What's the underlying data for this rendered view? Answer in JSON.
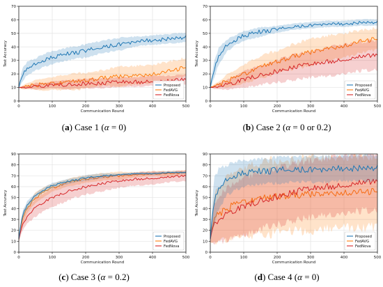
{
  "legend_colors": {
    "Proposed": "#1f77b4",
    "FedAVG": "#ff7f0e",
    "FedNova": "#d62728"
  },
  "captions": [
    {
      "letter": "a",
      "pre": "Case 1 (",
      "alpha": "α",
      "post": " = 0)"
    },
    {
      "letter": "b",
      "pre": "Case 2 (",
      "alpha": "α",
      "post": " = 0 or 0.2)"
    },
    {
      "letter": "c",
      "pre": "Case 3 (",
      "alpha": "α",
      "post": " = 0.2)"
    },
    {
      "letter": "d",
      "pre": "Case 4 (",
      "alpha": "α",
      "post": " = 0)"
    }
  ],
  "chart_data": [
    {
      "type": "line",
      "xlabel": "Communication Round",
      "ylabel": "Test Accuracy",
      "xlim": [
        0,
        500
      ],
      "ylim": [
        0,
        70
      ],
      "xticks": [
        0,
        100,
        200,
        300,
        400,
        500
      ],
      "yticks": [
        0,
        10,
        20,
        30,
        40,
        50,
        60,
        70
      ],
      "grid": true,
      "legend": "lower-right",
      "x": [
        0,
        10,
        25,
        50,
        75,
        100,
        150,
        200,
        250,
        300,
        350,
        400,
        450,
        500
      ],
      "series": [
        {
          "name": "Proposed",
          "values": [
            10,
            19,
            24,
            27,
            30,
            32,
            35,
            37,
            40,
            42,
            44,
            45,
            46,
            47
          ],
          "band": [
            2,
            4,
            4,
            4,
            4,
            4,
            4,
            4,
            4,
            4,
            3,
            3,
            3,
            3
          ]
        },
        {
          "name": "FedAVG",
          "values": [
            10,
            10,
            11,
            12,
            12,
            13,
            14,
            15,
            17,
            18,
            19,
            20,
            22,
            25
          ],
          "band": [
            0,
            1,
            2,
            3,
            4,
            4,
            5,
            5,
            5,
            6,
            6,
            6,
            6,
            6
          ]
        },
        {
          "name": "FedNova",
          "values": [
            10,
            10,
            10,
            11,
            11,
            12,
            12,
            13,
            13,
            14,
            14,
            15,
            15,
            16
          ],
          "band": [
            0,
            1,
            1,
            2,
            2,
            2,
            3,
            3,
            3,
            3,
            3,
            3,
            3,
            3
          ]
        }
      ]
    },
    {
      "type": "line",
      "xlabel": "Communication Round",
      "ylabel": "Test Accuracy",
      "xlim": [
        0,
        500
      ],
      "ylim": [
        0,
        70
      ],
      "xticks": [
        0,
        100,
        200,
        300,
        400,
        500
      ],
      "yticks": [
        0,
        10,
        20,
        30,
        40,
        50,
        60,
        70
      ],
      "grid": true,
      "legend": "lower-right",
      "x": [
        0,
        10,
        25,
        50,
        75,
        100,
        150,
        200,
        250,
        300,
        350,
        400,
        450,
        500
      ],
      "series": [
        {
          "name": "Proposed",
          "values": [
            10,
            22,
            33,
            41,
            45,
            48,
            51,
            53,
            55,
            56,
            57,
            57,
            58,
            58
          ],
          "band": [
            2,
            5,
            5,
            4,
            3,
            3,
            3,
            2,
            2,
            2,
            2,
            2,
            2,
            2
          ]
        },
        {
          "name": "FedAVG",
          "values": [
            10,
            11,
            12,
            15,
            17,
            20,
            25,
            29,
            33,
            36,
            39,
            41,
            44,
            46
          ],
          "band": [
            0,
            1,
            2,
            4,
            5,
            6,
            7,
            7,
            8,
            8,
            8,
            8,
            7,
            7
          ]
        },
        {
          "name": "FedNova",
          "values": [
            10,
            10,
            11,
            12,
            14,
            16,
            19,
            22,
            25,
            27,
            29,
            31,
            33,
            34
          ],
          "band": [
            0,
            1,
            2,
            3,
            4,
            5,
            6,
            7,
            8,
            8,
            9,
            9,
            9,
            9
          ]
        }
      ]
    },
    {
      "type": "line",
      "xlabel": "Communication Round",
      "ylabel": "Test Accuracy",
      "xlim": [
        0,
        500
      ],
      "ylim": [
        0,
        90
      ],
      "xticks": [
        0,
        100,
        200,
        300,
        400,
        500
      ],
      "yticks": [
        0,
        10,
        20,
        30,
        40,
        50,
        60,
        70,
        80,
        90
      ],
      "grid": true,
      "legend": "lower-right",
      "x": [
        0,
        10,
        25,
        50,
        75,
        100,
        150,
        200,
        250,
        300,
        350,
        400,
        450,
        500
      ],
      "series": [
        {
          "name": "Proposed",
          "values": [
            12,
            33,
            43,
            52,
            57,
            61,
            65,
            68,
            70,
            71,
            72,
            72,
            73,
            73
          ],
          "band": [
            3,
            3,
            3,
            2,
            2,
            2,
            2,
            2,
            2,
            1,
            1,
            1,
            1,
            1
          ]
        },
        {
          "name": "FedAVG",
          "values": [
            12,
            30,
            40,
            50,
            55,
            59,
            64,
            67,
            69,
            70,
            71,
            72,
            72,
            73
          ],
          "band": [
            3,
            4,
            4,
            4,
            4,
            3,
            3,
            3,
            3,
            3,
            2,
            2,
            2,
            2
          ]
        },
        {
          "name": "FedNova",
          "values": [
            12,
            24,
            33,
            41,
            46,
            50,
            56,
            60,
            63,
            65,
            67,
            68,
            69,
            70
          ],
          "band": [
            3,
            4,
            6,
            7,
            7,
            7,
            7,
            6,
            6,
            5,
            5,
            5,
            4,
            4
          ]
        }
      ]
    },
    {
      "type": "line",
      "xlabel": "Communication Round",
      "ylabel": "Test Accuracy",
      "xlim": [
        0,
        500
      ],
      "ylim": [
        0,
        90
      ],
      "xticks": [
        0,
        100,
        200,
        300,
        400,
        500
      ],
      "yticks": [
        0,
        10,
        20,
        30,
        40,
        50,
        60,
        70,
        80,
        90
      ],
      "grid": true,
      "legend": "lower-right",
      "x": [
        0,
        10,
        25,
        50,
        75,
        100,
        150,
        200,
        250,
        300,
        350,
        400,
        450,
        500
      ],
      "series": [
        {
          "name": "Proposed",
          "values": [
            12,
            45,
            58,
            66,
            70,
            72,
            74,
            75,
            76,
            76,
            76,
            77,
            77,
            77
          ],
          "band": [
            3,
            18,
            15,
            12,
            11,
            10,
            10,
            10,
            10,
            10,
            10,
            10,
            10,
            10
          ]
        },
        {
          "name": "FedAVG",
          "values": [
            12,
            30,
            35,
            40,
            44,
            46,
            49,
            51,
            52,
            53,
            54,
            55,
            55,
            56
          ],
          "band": [
            3,
            18,
            22,
            25,
            26,
            27,
            28,
            28,
            28,
            28,
            28,
            28,
            28,
            28
          ]
        },
        {
          "name": "FedNova",
          "values": [
            12,
            25,
            30,
            35,
            39,
            42,
            47,
            51,
            55,
            58,
            60,
            62,
            64,
            65
          ],
          "band": [
            3,
            15,
            18,
            20,
            21,
            22,
            22,
            22,
            22,
            22,
            22,
            22,
            22,
            22
          ]
        }
      ]
    }
  ]
}
